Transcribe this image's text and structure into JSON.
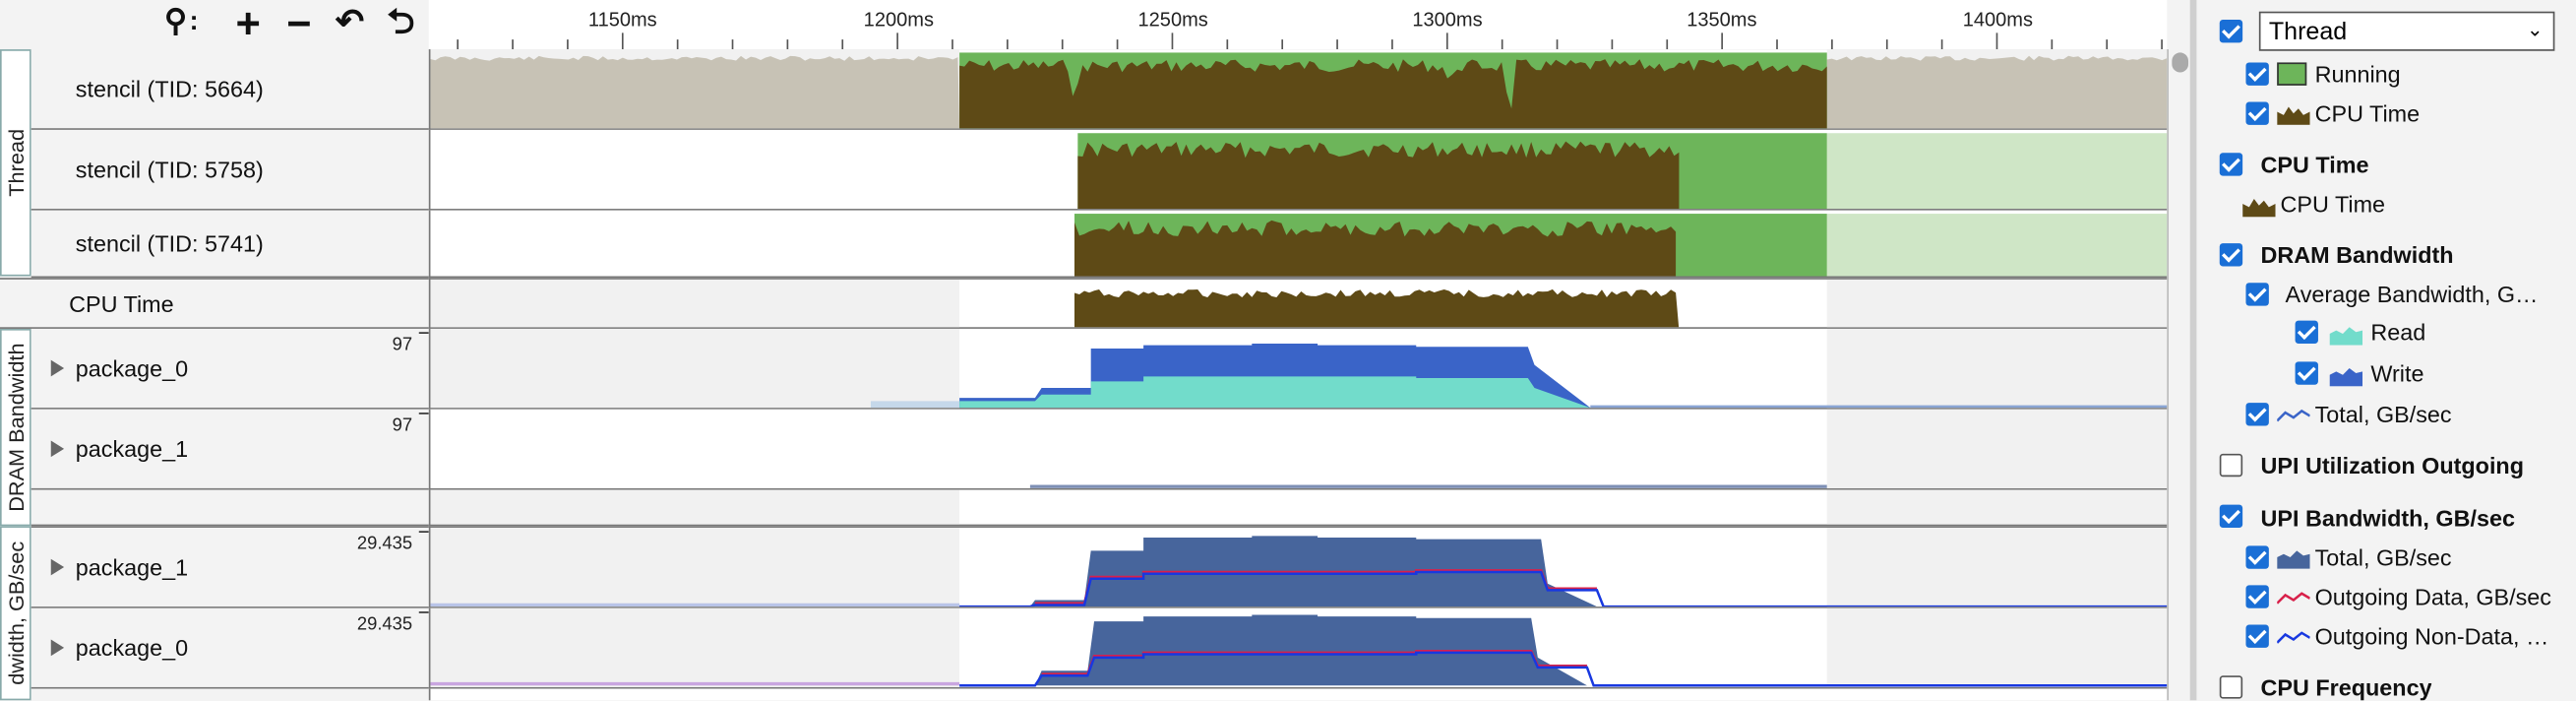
{
  "toolbar": {
    "zoom_glyph": "⚲",
    "zoom_colon": ":",
    "zoom_in": "+",
    "zoom_out": "−",
    "undo_zoom": "↶",
    "reset_zoom": "⮌"
  },
  "ruler": {
    "ticks": [
      "1150ms",
      "1200ms",
      "1250ms",
      "1300ms",
      "1350ms",
      "1400ms"
    ]
  },
  "groups": {
    "thread": "Thread",
    "dram": "DRAM Bandwidth",
    "upi": "dwidth, GB/sec"
  },
  "rows": {
    "t1": "stencil (TID: 5664)",
    "t2": "stencil (TID: 5758)",
    "t3": "stencil (TID: 5741)",
    "cpu": "CPU Time",
    "d1": "package_0",
    "d1_scale": "97",
    "d2": "package_1",
    "d2_scale": "97",
    "u1": "package_1",
    "u1_scale": "29.435",
    "u2": "package_0",
    "u2_scale": "29.435"
  },
  "legend": {
    "thread_select": "Thread",
    "running": "Running",
    "cpu_time_sub": "CPU Time",
    "cpu_time_header": "CPU Time",
    "cpu_time_item": "CPU Time",
    "dram_header": "DRAM Bandwidth",
    "avg_bw": "Average Bandwidth, GB/sec",
    "read": "Read",
    "write": "Write",
    "total_dram": "Total, GB/sec",
    "upi_util": "UPI Utilization Outgoing",
    "upi_bw": "UPI Bandwidth, GB/sec",
    "upi_total": "Total, GB/sec",
    "upi_out_data": "Outgoing Data, GB/sec",
    "upi_out_nondata": "Outgoing Non-Data, GB/sec",
    "cpu_freq": "CPU Frequency"
  },
  "colors": {
    "running": "#6db55a",
    "cpu_time": "#5e4a16",
    "idle_gray": "#c7c2b5",
    "dram_read": "#72dccb",
    "dram_write": "#3a64c8",
    "upi_total": "#47659c",
    "upi_data": "#d8204a",
    "upi_nondata": "#1838e0"
  }
}
